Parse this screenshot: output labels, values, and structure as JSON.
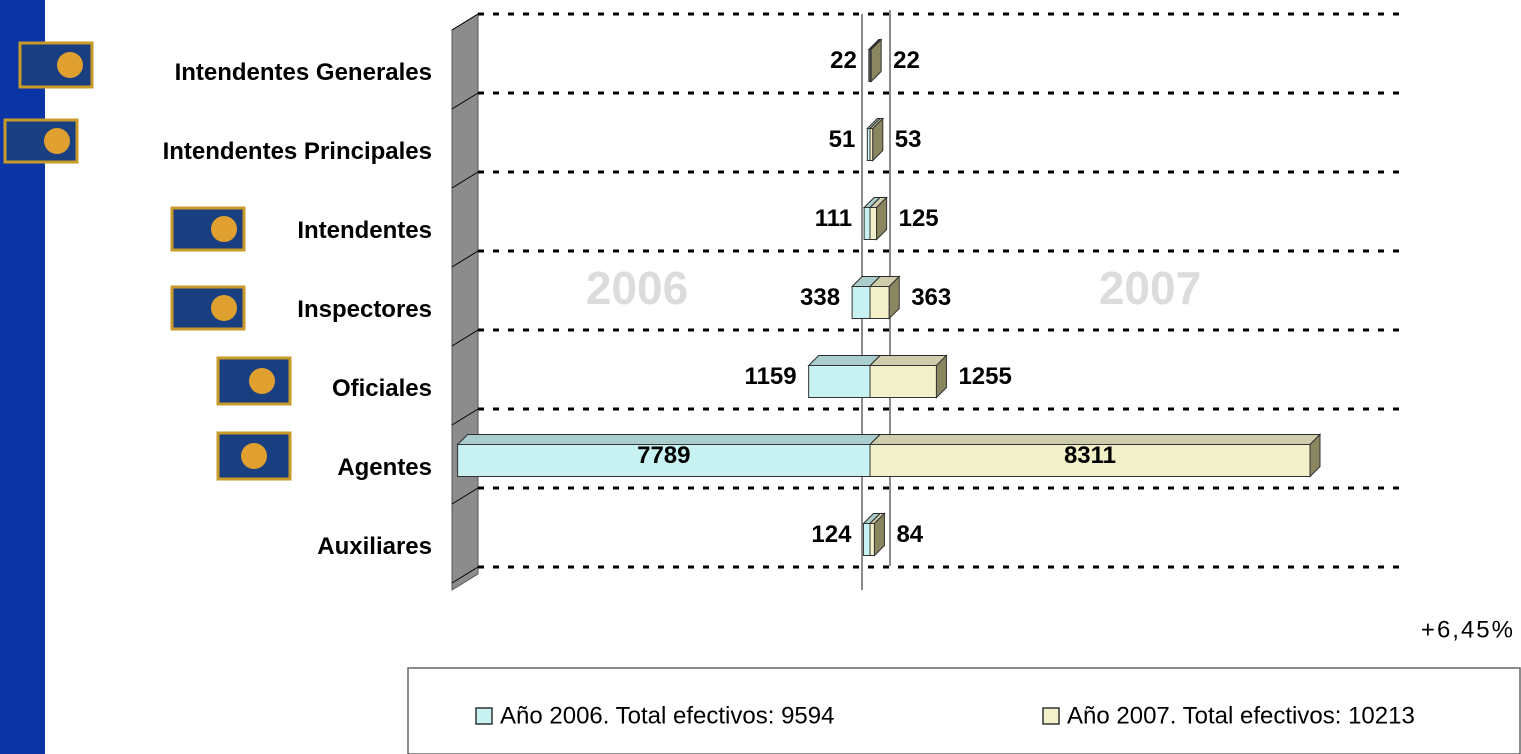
{
  "chart_data": {
    "type": "pyramid",
    "categories": [
      "Intendentes Generales",
      "Intendentes Principales",
      "Intendentes",
      "Inspectores",
      "Oficiales",
      "Agentes",
      "Auxiliares"
    ],
    "series": [
      {
        "name": "Año 2006. Total efectivos: 9594",
        "color": "#c8f2f2",
        "values": [
          22,
          51,
          111,
          338,
          1159,
          7789,
          124
        ]
      },
      {
        "name": "Año 2007. Total efectivos: 10213",
        "color": "#f2f0c8",
        "values": [
          22,
          53,
          125,
          363,
          1255,
          8311,
          84
        ]
      }
    ],
    "annotations": [
      "2006",
      "2007",
      "+6,45%"
    ],
    "grid": true
  }
}
